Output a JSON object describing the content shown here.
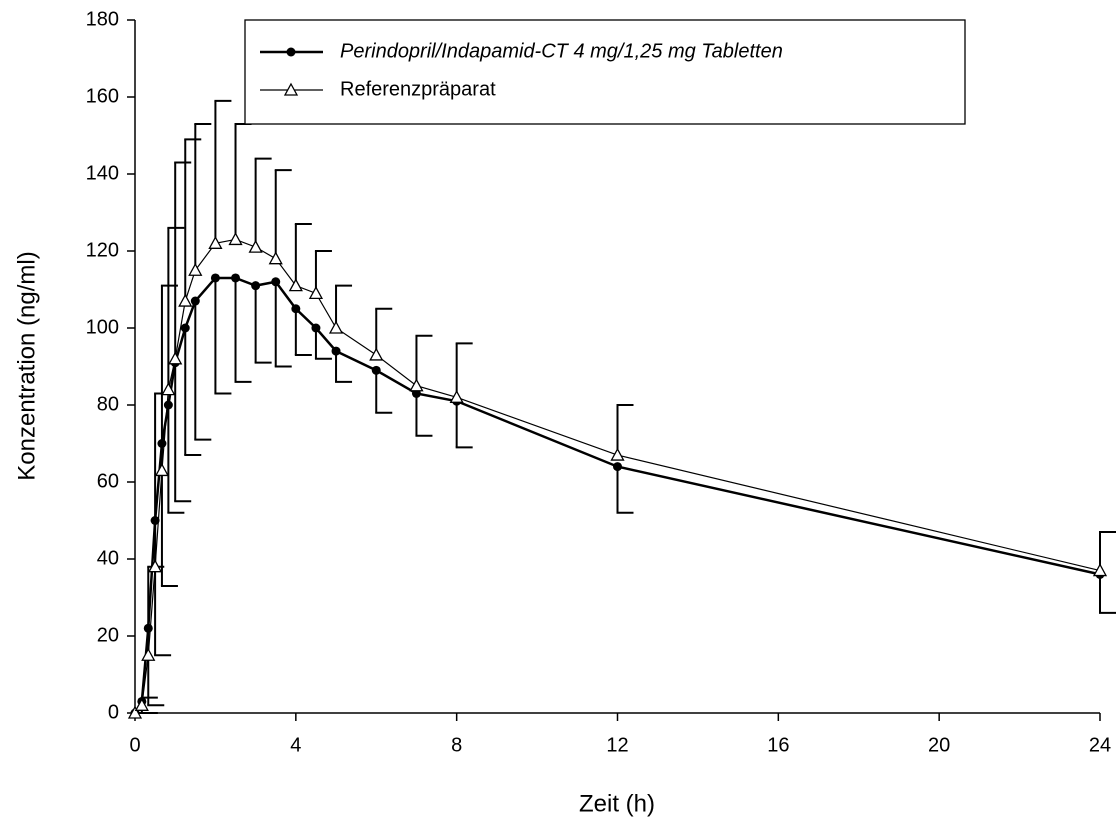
{
  "chart_data": {
    "type": "line",
    "x_label": "Zeit (h)",
    "y_label": "Konzentration (ng/ml)",
    "x": [
      0,
      0.17,
      0.33,
      0.5,
      0.67,
      0.83,
      1,
      1.25,
      1.5,
      2,
      2.5,
      3,
      3.5,
      4,
      4.5,
      5,
      6,
      7,
      8,
      12,
      24
    ],
    "series": [
      {
        "name": "Perindopril/Indapamid-CT 4 mg/1,25 mg Tabletten",
        "color": "#000000",
        "marker": "circle",
        "error_direction": "down",
        "values": [
          0,
          3,
          22,
          50,
          70,
          80,
          91,
          100,
          107,
          113,
          113,
          111,
          112,
          105,
          100,
          94,
          89,
          83,
          81,
          64,
          36
        ],
        "errors": [
          0,
          3,
          20,
          35,
          37,
          28,
          36,
          33,
          36,
          30,
          27,
          20,
          22,
          12,
          8,
          8,
          11,
          11,
          12,
          12,
          10
        ]
      },
      {
        "name": "Referenzpräparat",
        "color": "#000000",
        "marker": "triangle",
        "error_direction": "up",
        "values": [
          0,
          2,
          15,
          38,
          63,
          84,
          92,
          107,
          115,
          122,
          123,
          121,
          118,
          111,
          109,
          100,
          93,
          85,
          82,
          67,
          37
        ],
        "errors": [
          0,
          2,
          23,
          45,
          48,
          42,
          51,
          42,
          38,
          37,
          30,
          23,
          23,
          16,
          11,
          11,
          12,
          13,
          14,
          13,
          10
        ]
      }
    ],
    "xlim": [
      0,
      24
    ],
    "xticks": [
      0,
      4,
      8,
      12,
      16,
      20,
      24
    ],
    "ylim": [
      0,
      180
    ],
    "yticks": [
      0,
      20,
      40,
      60,
      80,
      100,
      120,
      140,
      160,
      180
    ],
    "legend": "top-right"
  }
}
